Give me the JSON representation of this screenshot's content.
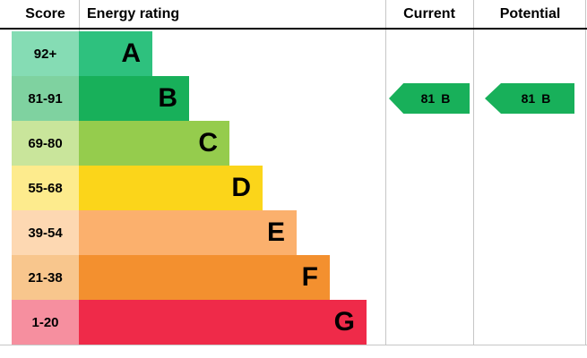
{
  "header": {
    "score": "Score",
    "energy_rating": "Energy rating",
    "current": "Current",
    "potential": "Potential"
  },
  "bands": [
    {
      "range": "92+",
      "letter": "A",
      "bar_color": "#2ec17e",
      "tint_color": "#85dcb4",
      "width_pct": 24
    },
    {
      "range": "81-91",
      "letter": "B",
      "bar_color": "#18b05a",
      "tint_color": "#7fd2a0",
      "width_pct": 36
    },
    {
      "range": "69-80",
      "letter": "C",
      "bar_color": "#95cc4d",
      "tint_color": "#c9e59b",
      "width_pct": 49
    },
    {
      "range": "55-68",
      "letter": "D",
      "bar_color": "#fbd51a",
      "tint_color": "#fdeb8d",
      "width_pct": 60
    },
    {
      "range": "39-54",
      "letter": "E",
      "bar_color": "#fbb06d",
      "tint_color": "#fdd8b2",
      "width_pct": 71
    },
    {
      "range": "21-38",
      "letter": "F",
      "bar_color": "#f3902f",
      "tint_color": "#f8c68d",
      "width_pct": 82
    },
    {
      "range": "1-20",
      "letter": "G",
      "bar_color": "#ef2a49",
      "tint_color": "#f68f9f",
      "width_pct": 94
    }
  ],
  "current": {
    "value": "81",
    "band": "B",
    "color": "#18b05a"
  },
  "potential": {
    "value": "81",
    "band": "B",
    "color": "#18b05a"
  },
  "chart_data": {
    "type": "bar",
    "orientation": "horizontal",
    "title": "Energy rating",
    "categories": [
      "A",
      "B",
      "C",
      "D",
      "E",
      "F",
      "G"
    ],
    "score_ranges": [
      "92+",
      "81-91",
      "69-80",
      "55-68",
      "39-54",
      "21-38",
      "1-20"
    ],
    "bar_relative_widths_pct": [
      24,
      36,
      49,
      60,
      71,
      82,
      94
    ],
    "bar_colors": [
      "#2ec17e",
      "#18b05a",
      "#95cc4d",
      "#fbd51a",
      "#fbb06d",
      "#f3902f",
      "#ef2a49"
    ],
    "current": {
      "value": 81,
      "band": "B"
    },
    "potential": {
      "value": 81,
      "band": "B"
    }
  }
}
